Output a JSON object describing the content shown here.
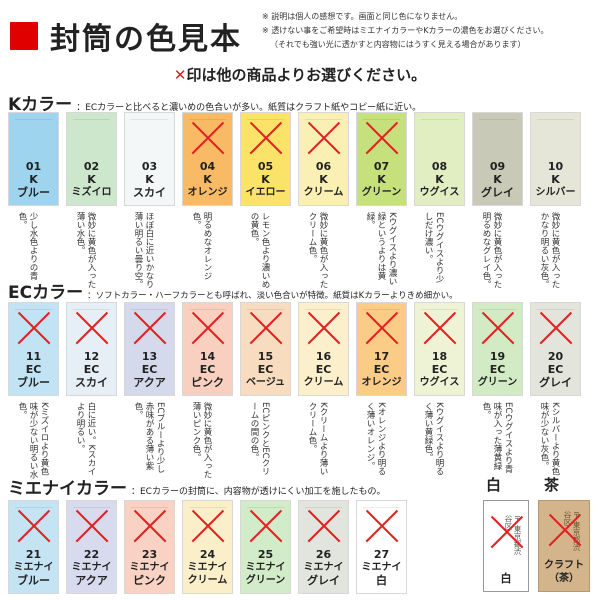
{
  "header": {
    "title": "封筒の色見本",
    "notes": [
      "※ 説明は個人の感想です。画面と同じ色になりません。",
      "※ 透けない事をご希望時はミエナイカラーやKカラーの濃色をお選びください。",
      "（それでも強い光に透かすと内容物にはうすく見える場合があります）"
    ]
  },
  "instruction": {
    "mark": "✕",
    "text": "印は他の商品よりお選びください。"
  },
  "colors": {
    "accent": "#e00000",
    "x_mark": "#e32020"
  },
  "sections": {
    "k": {
      "title": "Kカラー",
      "desc": "：ECカラーと比べると濃いめの色合いが多い。紙質はクラフト紙やコピー紙に近い。",
      "items": [
        {
          "num": "01",
          "code": "K",
          "name": "ブルー",
          "color": "#9fd4ef",
          "desc": "少し水色よりの青色。",
          "crossed": false
        },
        {
          "num": "02",
          "code": "K",
          "name": "ミズイロ",
          "color": "#cde7cd",
          "desc": "微妙に黄色が入った薄い水色。",
          "crossed": false
        },
        {
          "num": "03",
          "code": "K",
          "name": "スカイ",
          "color": "#f4f7f8",
          "desc": "ほぼ白に近いかなり薄い明るい曇り空。",
          "crossed": false
        },
        {
          "num": "04",
          "code": "K",
          "name": "オレンジ",
          "color": "#f8ba64",
          "desc": "明るめなオレンジ色。",
          "crossed": true
        },
        {
          "num": "05",
          "code": "K",
          "name": "イエロー",
          "color": "#fbe36a",
          "desc": "レモン色より濃いめの黄色。",
          "crossed": true
        },
        {
          "num": "06",
          "code": "K",
          "name": "クリーム",
          "color": "#fbf0b3",
          "desc": "微妙に黄色が入ったクリーム色。",
          "crossed": true
        },
        {
          "num": "07",
          "code": "K",
          "name": "グリーン",
          "color": "#c6e07c",
          "desc": "Kウグイスより濃い緑というよりは黄緑。",
          "crossed": true
        },
        {
          "num": "08",
          "code": "K",
          "name": "ウグイス",
          "color": "#e1eec2",
          "desc": "ECウグイスより少しだけ濃い。",
          "crossed": false
        },
        {
          "num": "09",
          "code": "K",
          "name": "グレイ",
          "color": "#c8c9b6",
          "desc": "微妙に黄色が入った明るめなグレイ色。",
          "crossed": false
        },
        {
          "num": "10",
          "code": "K",
          "name": "シルバー",
          "color": "#e5e5d8",
          "desc": "微妙に黄色が入ったかなり明るい灰色。",
          "crossed": false
        }
      ]
    },
    "ec": {
      "title": "ECカラー",
      "desc": "：ソフトカラー・ハーフカラーとも呼ばれ、淡い色合いが特徴。紙質はKカラーよりきめ細かい。",
      "items": [
        {
          "num": "11",
          "code": "EC",
          "name": "ブルー",
          "color": "#c2e3f4",
          "desc": "Kミズイロより黄色味が少ない明るい水色。",
          "crossed": true
        },
        {
          "num": "12",
          "code": "EC",
          "name": "スカイ",
          "color": "#e6eef6",
          "desc": "白に近い。Kスカイより明るい。",
          "crossed": true
        },
        {
          "num": "13",
          "code": "EC",
          "name": "アクア",
          "color": "#d4d9ec",
          "desc": "ECブルーより少し赤味がある薄い紫色。",
          "crossed": true
        },
        {
          "num": "14",
          "code": "EC",
          "name": "ピンク",
          "color": "#f9d0c0",
          "desc": "微妙に黄色が入った薄いピンク色。",
          "crossed": true
        },
        {
          "num": "15",
          "code": "EC",
          "name": "ベージュ",
          "color": "#f8dcc0",
          "desc": "ECピンクとECクリームの間の色。",
          "crossed": true
        },
        {
          "num": "16",
          "code": "EC",
          "name": "クリーム",
          "color": "#fbefcc",
          "desc": "Kクリームより薄いクリーム色。",
          "crossed": true
        },
        {
          "num": "17",
          "code": "EC",
          "name": "オレンジ",
          "color": "#fbcc85",
          "desc": "Kオレンジより明るく薄いオレンジ。",
          "crossed": true
        },
        {
          "num": "18",
          "code": "EC",
          "name": "ウグイス",
          "color": "#eff3d6",
          "desc": "Kウグイスより明るく薄い黄緑色。",
          "crossed": true
        },
        {
          "num": "19",
          "code": "EC",
          "name": "グリーン",
          "color": "#d2ebc4",
          "desc": "ECウグイスより青味が入った薄黄緑色。",
          "crossed": true
        },
        {
          "num": "20",
          "code": "EC",
          "name": "グレイ",
          "color": "#e3e5dc",
          "desc": "Kシルバーより黄色味が少ない灰色。",
          "crossed": true
        }
      ]
    },
    "m": {
      "title": "ミエナイカラー",
      "desc": "：ECカラーの封筒に、内容物が透けにくい加工を施したもの。",
      "items": [
        {
          "num": "21",
          "code": "ミエナイ",
          "name": "ブルー",
          "color": "#c4e4f4",
          "crossed": true
        },
        {
          "num": "22",
          "code": "ミエナイ",
          "name": "アクア",
          "color": "#d8dbee",
          "crossed": true
        },
        {
          "num": "23",
          "code": "ミエナイ",
          "name": "ピンク",
          "color": "#f9d2c3",
          "crossed": true
        },
        {
          "num": "24",
          "code": "ミエナイ",
          "name": "クリーム",
          "color": "#fbefc9",
          "crossed": true
        },
        {
          "num": "25",
          "code": "ミエナイ",
          "name": "グリーン",
          "color": "#d2ebc8",
          "crossed": true
        },
        {
          "num": "26",
          "code": "ミエナイ",
          "name": "グレイ",
          "color": "#e2e4de",
          "crossed": true
        },
        {
          "num": "27",
          "code": "ミエナイ",
          "name": "白",
          "color": "#ffffff",
          "crossed": true
        }
      ]
    },
    "white": {
      "heading": "白",
      "label": "白",
      "color": "#ffffff",
      "stamp": "〒 東京都渋谷区",
      "crossed": true
    },
    "brown": {
      "heading": "茶",
      "label": "クラフト（茶）",
      "color": "#d4b48a",
      "stamp": "〒 東京都渋谷区",
      "crossed": true
    }
  }
}
